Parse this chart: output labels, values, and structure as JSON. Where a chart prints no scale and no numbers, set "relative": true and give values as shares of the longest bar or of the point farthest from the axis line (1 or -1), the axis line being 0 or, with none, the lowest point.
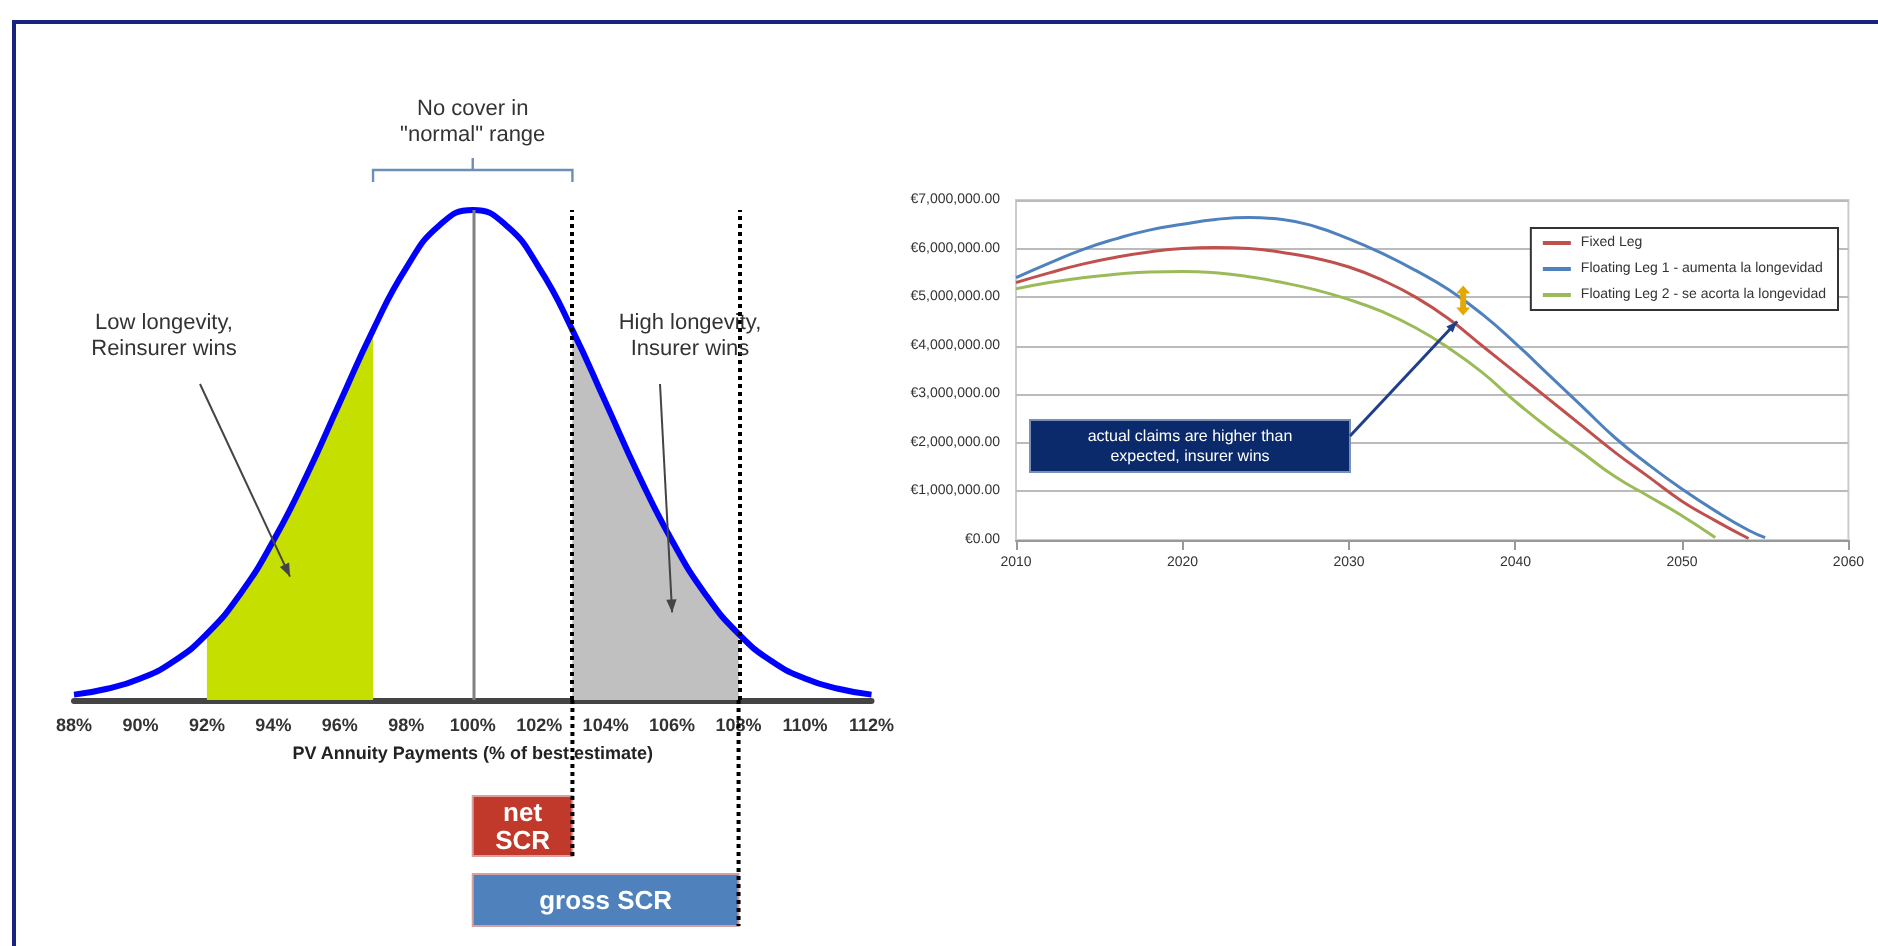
{
  "chart_data": [
    {
      "type": "line",
      "relative": true,
      "xlabel": "PV Annuity Payments (% of best estimate)",
      "x": [
        88,
        89,
        90,
        91,
        92,
        93,
        94,
        95,
        96,
        97,
        98,
        99,
        100,
        101,
        102,
        103,
        104,
        105,
        106,
        107,
        108,
        109,
        110,
        111,
        112
      ],
      "series": [
        {
          "color": "#0000ff",
          "values": [
            0.011,
            0.023,
            0.044,
            0.079,
            0.135,
            0.216,
            0.325,
            0.458,
            0.607,
            0.755,
            0.882,
            0.969,
            1,
            0.969,
            0.882,
            0.755,
            0.607,
            0.458,
            0.325,
            0.216,
            0.135,
            0.079,
            0.044,
            0.023,
            0.011
          ]
        },
        {
          "type": "area",
          "color": "#c5e000",
          "x": [
            92,
            93,
            94,
            95,
            96,
            97
          ],
          "values": [
            0.135,
            0.216,
            0.325,
            0.458,
            0.607,
            0.755
          ]
        },
        {
          "type": "area",
          "color": "#c0c0c0",
          "x": [
            103,
            104,
            105,
            106,
            107,
            108
          ],
          "values": [
            0.755,
            0.607,
            0.458,
            0.325,
            0.216,
            0.135
          ]
        }
      ],
      "xlim": [
        88,
        112
      ],
      "xticks": [
        {
          "value": 88,
          "label": "88%"
        },
        {
          "value": 90,
          "label": "90%"
        },
        {
          "value": 92,
          "label": "92%"
        },
        {
          "value": 94,
          "label": "94%"
        },
        {
          "value": 96,
          "label": "96%"
        },
        {
          "value": 98,
          "label": "98%"
        },
        {
          "value": 100,
          "label": "100%"
        },
        {
          "value": 102,
          "label": "102%"
        },
        {
          "value": 104,
          "label": "104%"
        },
        {
          "value": 106,
          "label": "106%"
        },
        {
          "value": 108,
          "label": "108%"
        },
        {
          "value": 110,
          "label": "110%"
        },
        {
          "value": 112,
          "label": "112%"
        }
      ],
      "ref_lines": [
        {
          "axis": "x",
          "value": 100,
          "color": "#808080",
          "line_style": "solid"
        },
        {
          "axis": "x",
          "value": 103,
          "color": "#000000",
          "line_style": "dotted"
        },
        {
          "axis": "x",
          "value": 108,
          "color": "#000000",
          "line_style": "dotted"
        }
      ],
      "annotations": [
        "No cover in\n\"normal\" range",
        "Low longevity,\nReinsurer wins",
        "High longevity,\nInsurer wins",
        "net\nSCR",
        "gross SCR"
      ],
      "grid": false,
      "legend": false
    },
    {
      "type": "line",
      "series": [
        {
          "name": "Fixed Leg",
          "color": "#c0504d",
          "x": [
            2010,
            2012,
            2014,
            2016,
            2018,
            2020,
            2022,
            2024,
            2026,
            2028,
            2030,
            2032,
            2034,
            2036,
            2038,
            2040,
            2042,
            2044,
            2046,
            2048,
            2050,
            2052,
            2054
          ],
          "values": [
            5300000,
            5500000,
            5680000,
            5820000,
            5930000,
            6000000,
            6020000,
            6000000,
            5920000,
            5800000,
            5620000,
            5350000,
            5000000,
            4550000,
            4000000,
            3450000,
            2900000,
            2350000,
            1800000,
            1300000,
            800000,
            400000,
            30000
          ]
        },
        {
          "name": "Floating Leg 1 - aumenta la longevidad",
          "color": "#4f81bd",
          "x": [
            2010,
            2012,
            2014,
            2016,
            2018,
            2020,
            2022,
            2024,
            2026,
            2028,
            2030,
            2032,
            2034,
            2036,
            2038,
            2040,
            2042,
            2044,
            2046,
            2048,
            2050,
            2052,
            2054,
            2055
          ],
          "values": [
            5400000,
            5700000,
            5980000,
            6200000,
            6380000,
            6500000,
            6600000,
            6640000,
            6600000,
            6450000,
            6200000,
            5900000,
            5550000,
            5150000,
            4650000,
            4050000,
            3400000,
            2750000,
            2100000,
            1550000,
            1050000,
            600000,
            200000,
            50000
          ]
        },
        {
          "name": "Floating Leg 2 - se acorta la longevidad",
          "color": "#9bbb59",
          "x": [
            2010,
            2012,
            2014,
            2016,
            2018,
            2020,
            2022,
            2024,
            2026,
            2028,
            2030,
            2032,
            2034,
            2036,
            2038,
            2040,
            2042,
            2044,
            2046,
            2048,
            2050,
            2052
          ],
          "values": [
            5170000,
            5300000,
            5400000,
            5470000,
            5520000,
            5530000,
            5500000,
            5420000,
            5300000,
            5150000,
            4950000,
            4700000,
            4370000,
            3950000,
            3450000,
            2850000,
            2300000,
            1800000,
            1300000,
            900000,
            500000,
            50000
          ]
        }
      ],
      "xlim": [
        2010,
        2060
      ],
      "xticks": [
        2010,
        2020,
        2030,
        2040,
        2050,
        2060
      ],
      "ylim": [
        0,
        7000000
      ],
      "yticks": [
        {
          "value": 0,
          "label": "€0.00"
        },
        {
          "value": 1000000,
          "label": "€1,000,000.00"
        },
        {
          "value": 2000000,
          "label": "€2,000,000.00"
        },
        {
          "value": 3000000,
          "label": "€3,000,000.00"
        },
        {
          "value": 4000000,
          "label": "€4,000,000.00"
        },
        {
          "value": 5000000,
          "label": "€5,000,000.00"
        },
        {
          "value": 6000000,
          "label": "€6,000,000.00"
        },
        {
          "value": 7000000,
          "label": "€7,000,000.00"
        }
      ],
      "annotations": [
        "actual claims are higher than\nexpected, insurer wins"
      ],
      "grid": "y",
      "legend": "top right"
    }
  ]
}
